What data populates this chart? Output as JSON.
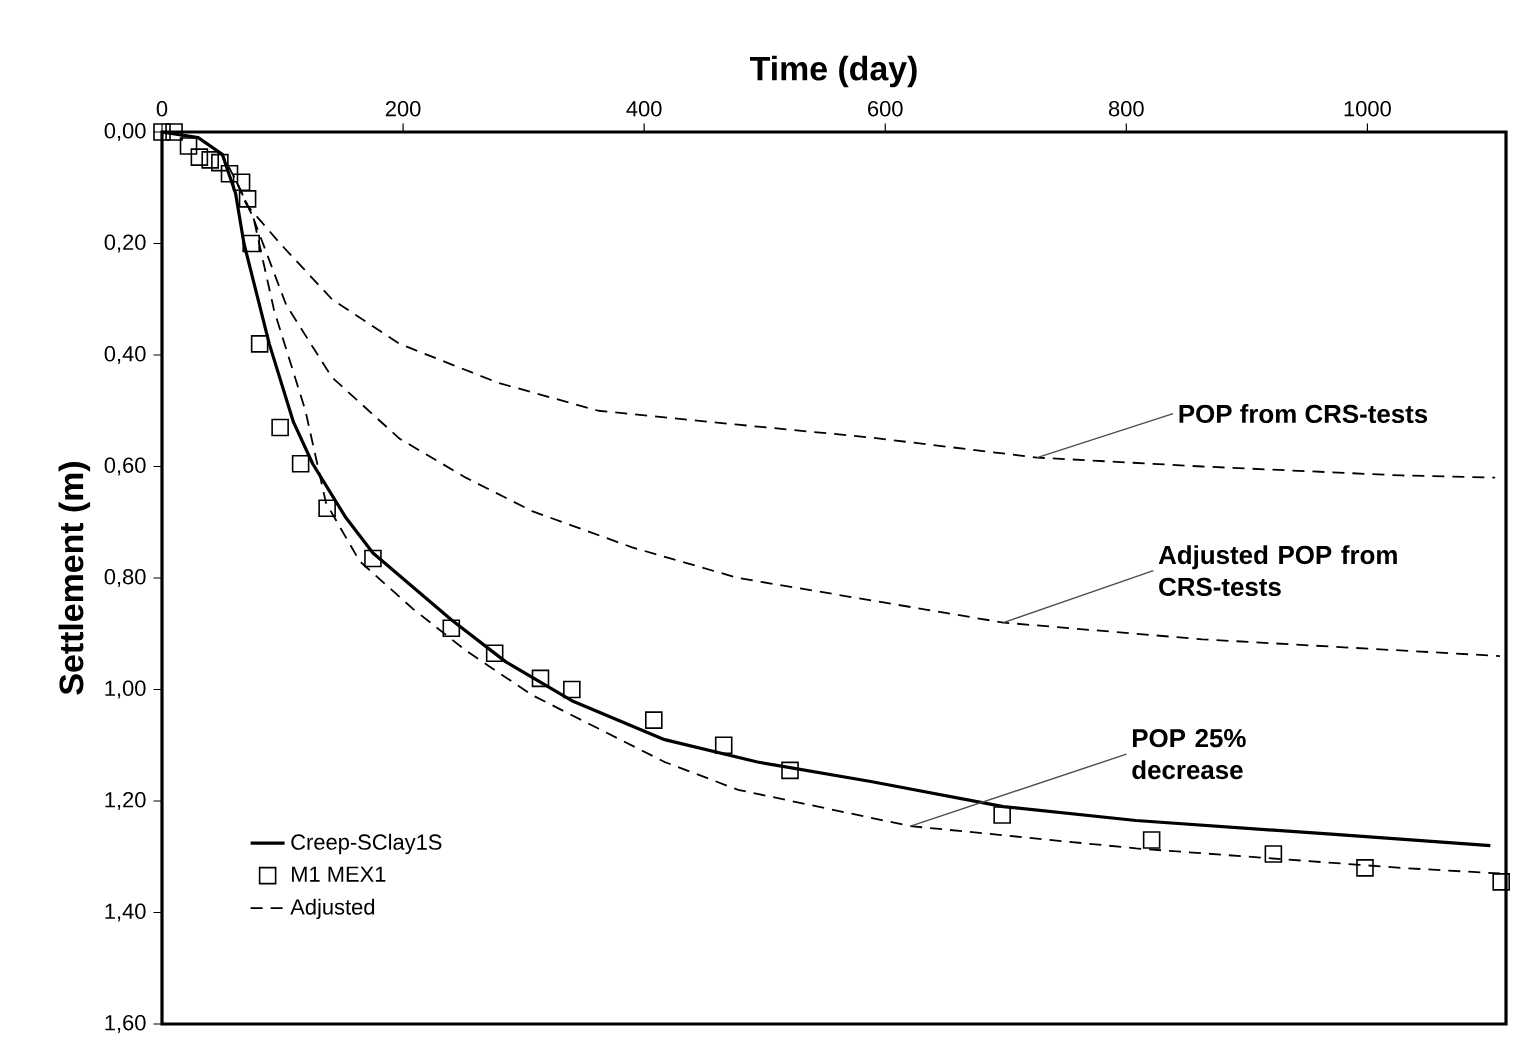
{
  "chart_data": {
    "type": "line",
    "xlabel": "Time (day)",
    "ylabel": "Settlement (m)",
    "xlim": [
      0,
      1115
    ],
    "ylim": [
      1.6,
      0
    ],
    "xticks": [
      0,
      200,
      400,
      600,
      800,
      1000
    ],
    "yticks": [
      {
        "value": 0,
        "label": "0,00"
      },
      {
        "value": 0.2,
        "label": "0,20"
      },
      {
        "value": 0.4,
        "label": "0,40"
      },
      {
        "value": 0.6,
        "label": "0,60"
      },
      {
        "value": 0.8,
        "label": "0,80"
      },
      {
        "value": 1.0,
        "label": "1,00"
      },
      {
        "value": 1.2,
        "label": "1,20"
      },
      {
        "value": 1.4,
        "label": "1,40"
      },
      {
        "value": 1.6,
        "label": "1,60"
      }
    ],
    "legend": "bottom left",
    "grid": false,
    "series": [
      {
        "name": "Creep-SClay1S",
        "color": "#000000",
        "line_style": "solid",
        "x": [
          0,
          30,
          50,
          61,
          68,
          89,
          109,
          125,
          152,
          175,
          240,
          285,
          340,
          417,
          494,
          588,
          698,
          808,
          973,
          1102
        ],
        "values": [
          0,
          0.01,
          0.04,
          0.11,
          0.2,
          0.38,
          0.52,
          0.595,
          0.69,
          0.755,
          0.875,
          0.95,
          1.02,
          1.09,
          1.13,
          1.165,
          1.21,
          1.235,
          1.26,
          1.28
        ]
      },
      {
        "name": "M1 MEX1",
        "type": "scatter",
        "marker": "square",
        "color": "#000000",
        "x": [
          0,
          10,
          22,
          31,
          40,
          48,
          56,
          66,
          71,
          74,
          81,
          98,
          115,
          137,
          175,
          240,
          276,
          314,
          340,
          408,
          466,
          521,
          697,
          821,
          922,
          998,
          1111
        ],
        "values": [
          0,
          0,
          0.025,
          0.045,
          0.05,
          0.055,
          0.075,
          0.09,
          0.12,
          0.2,
          0.38,
          0.53,
          0.595,
          0.675,
          0.765,
          0.89,
          0.935,
          0.98,
          1.0,
          1.055,
          1.1,
          1.145,
          1.225,
          1.27,
          1.295,
          1.32,
          1.345
        ]
      },
      {
        "name": "Adjusted",
        "color": "#000000",
        "line_style": "dashed",
        "x": [
          0,
          30,
          50,
          62,
          76,
          93,
          119,
          136,
          164,
          208,
          252,
          307,
          362,
          417,
          478,
          621,
          808,
          1028,
          1110
        ],
        "values": [
          0,
          0.01,
          0.04,
          0.09,
          0.155,
          0.32,
          0.5,
          0.665,
          0.77,
          0.855,
          0.93,
          1.01,
          1.07,
          1.13,
          1.18,
          1.245,
          1.285,
          1.32,
          1.33
        ]
      },
      {
        "color": "#000000",
        "line_style": "dashed",
        "x": [
          62,
          70,
          98,
          141,
          197,
          279,
          362,
          478,
          588,
          726,
          863,
          1028,
          1106
        ],
        "values": [
          0.09,
          0.13,
          0.2,
          0.3,
          0.38,
          0.45,
          0.5,
          0.525,
          0.548,
          0.584,
          0.6,
          0.616,
          0.62
        ]
      },
      {
        "color": "#000000",
        "line_style": "dashed",
        "x": [
          62,
          75,
          103,
          141,
          197,
          252,
          307,
          390,
          478,
          698,
          863,
          1110
        ],
        "values": [
          0.09,
          0.15,
          0.31,
          0.44,
          0.55,
          0.62,
          0.68,
          0.745,
          0.8,
          0.88,
          0.91,
          0.94
        ]
      }
    ],
    "annotations": [
      {
        "text": "POP from CRS-tests",
        "x": 726,
        "y": 0.584
      },
      {
        "text": "Adjusted POP from CRS-tests",
        "x": 698,
        "y": 0.88
      },
      {
        "text": "POP 25% decrease",
        "x": 621,
        "y": 1.245
      }
    ]
  }
}
